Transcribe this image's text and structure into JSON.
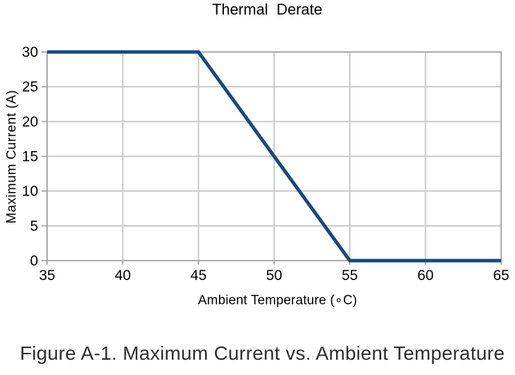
{
  "page": {
    "caption": "Figure A-1. Maximum Current vs. Ambient Temperature"
  },
  "colors": {
    "series_line": "#17497F",
    "grid": "#C9C9C9",
    "axis_border": "#A9A9A9",
    "tick_text": "#000000",
    "caption_text": "#2E2E2E"
  },
  "chart_data": {
    "type": "line",
    "title": "Thermal  Derate",
    "xlabel": "Ambient Temperature (∘C)",
    "ylabel": "Maximum Current (A)",
    "xlim": [
      35,
      65
    ],
    "ylim": [
      0,
      30
    ],
    "xticks": [
      35,
      40,
      45,
      50,
      55,
      60,
      65
    ],
    "yticks": [
      0,
      5,
      10,
      15,
      20,
      25,
      30
    ],
    "grid": true,
    "legend": false,
    "series": [
      {
        "name": "Maximum Current",
        "x": [
          35,
          45,
          55,
          65
        ],
        "y": [
          30,
          30,
          0,
          0
        ],
        "color": "#17497F",
        "stroke_width": 5
      }
    ]
  }
}
